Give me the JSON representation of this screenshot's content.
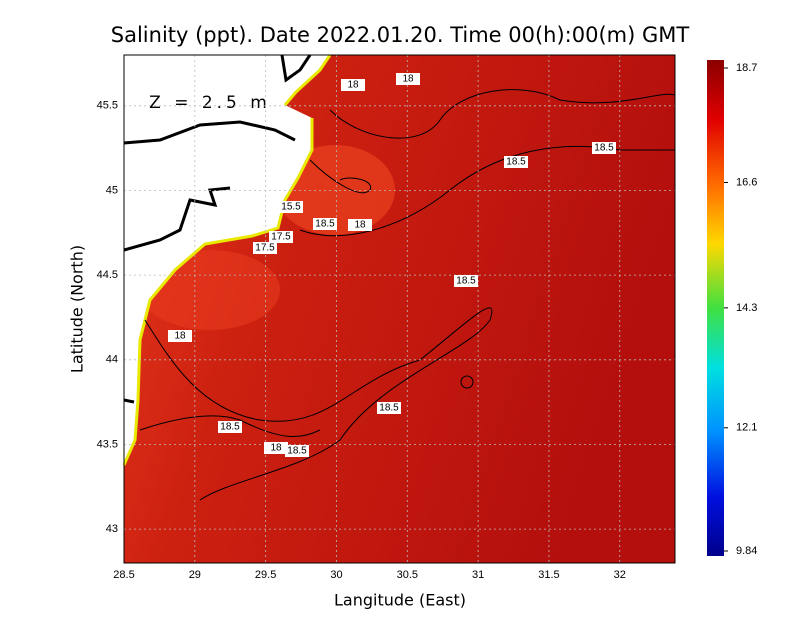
{
  "map": {
    "title": "Salinity (ppt). Date 2022.01.20. Time 00(h):00(m) GMT",
    "depth_label": "Z = 2.5 m",
    "x_label": "Langitude (East)",
    "y_label": "Latitude (North)",
    "xlim": [
      28.5,
      32.39
    ],
    "ylim": [
      42.8,
      45.8
    ],
    "xticks": [
      28.5,
      29,
      29.5,
      30,
      30.5,
      31,
      31.5,
      32
    ],
    "yticks": [
      43,
      43.5,
      44,
      44.5,
      45,
      45.5
    ],
    "colorbar_ticks": [
      18.7,
      16.6,
      14.3,
      12.1,
      9.84
    ],
    "contour_labels": [
      18,
      18,
      18.5,
      18.5,
      15.5,
      17.5,
      17.5,
      18.5,
      18,
      18.5,
      18,
      18.5,
      18.5,
      18,
      18.5
    ]
  }
}
